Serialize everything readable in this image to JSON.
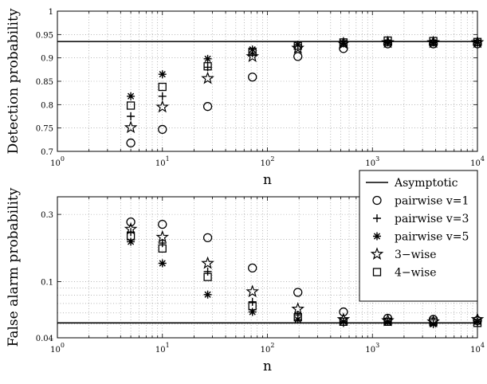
{
  "chart_data": [
    {
      "type": "scatter",
      "xscale": "log",
      "xlim": [
        1,
        10000
      ],
      "ylim": [
        0.7,
        1
      ],
      "xlabel": "n",
      "ylabel": "Detection probability",
      "grid": true,
      "x_ticks": [
        1,
        10,
        100,
        1000,
        10000
      ],
      "x_tick_labels": [
        [
          "10",
          "0"
        ],
        [
          "10",
          "1"
        ],
        [
          "10",
          "2"
        ],
        [
          "10",
          "3"
        ],
        [
          "10",
          "4"
        ]
      ],
      "y_ticks": [
        0.7,
        0.75,
        0.8,
        0.85,
        0.9,
        0.95,
        1
      ],
      "y_tick_labels": [
        "0.7",
        "0.75",
        "0.8",
        "0.85",
        "0.9",
        "0.95",
        "1"
      ],
      "asymptote": 0.935,
      "x": [
        5,
        10,
        27,
        72,
        195,
        530,
        1400,
        3800,
        10000
      ],
      "series": [
        {
          "name": "pairwise v=1",
          "marker": "circle",
          "values": [
            0.718,
            0.747,
            0.796,
            0.859,
            0.903,
            0.92,
            0.93,
            0.93,
            0.93
          ]
        },
        {
          "name": "pairwise v=3",
          "marker": "plus",
          "values": [
            0.775,
            0.818,
            0.88,
            0.91,
            0.928,
            0.931,
            0.933,
            0.933,
            0.933
          ]
        },
        {
          "name": "pairwise v=5",
          "marker": "asterisk",
          "values": [
            0.818,
            0.865,
            0.898,
            0.918,
            0.928,
            0.932,
            0.933,
            0.933,
            0.933
          ]
        },
        {
          "name": "3−wise",
          "marker": "star",
          "values": [
            0.751,
            0.795,
            0.856,
            0.903,
            0.921,
            0.931,
            0.933,
            0.933,
            0.933
          ]
        },
        {
          "name": "4−wise",
          "marker": "square",
          "values": [
            0.798,
            0.838,
            0.882,
            0.913,
            0.926,
            0.933,
            0.937,
            0.936,
            0.934
          ]
        }
      ]
    },
    {
      "type": "scatter",
      "xscale": "log",
      "yscale": "log",
      "xlim": [
        1,
        10000
      ],
      "ylim": [
        0.04,
        0.4
      ],
      "xlabel": "n",
      "ylabel": "False alarm probability",
      "grid": true,
      "legend_position": "top-right",
      "legend_extra": "Asymptotic",
      "x_ticks": [
        1,
        10,
        100,
        1000,
        10000
      ],
      "x_tick_labels": [
        [
          "10",
          "0"
        ],
        [
          "10",
          "1"
        ],
        [
          "10",
          "2"
        ],
        [
          "10",
          "3"
        ],
        [
          "10",
          "4"
        ]
      ],
      "y_ticks": [
        0.04,
        0.1,
        0.3
      ],
      "y_tick_labels": [
        "0.04",
        "0.1",
        "0.3"
      ],
      "asymptote": 0.051,
      "x": [
        5,
        10,
        27,
        72,
        195,
        530,
        1400,
        3800,
        10000
      ],
      "series": [
        {
          "name": "pairwise v=1",
          "marker": "circle",
          "values": [
            0.265,
            0.255,
            0.205,
            0.125,
            0.084,
            0.061,
            0.055,
            0.054,
            0.053
          ]
        },
        {
          "name": "pairwise v=3",
          "marker": "plus",
          "values": [
            0.225,
            0.188,
            0.118,
            0.072,
            0.058,
            0.051,
            0.052,
            0.051,
            0.052
          ]
        },
        {
          "name": "pairwise v=5",
          "marker": "asterisk",
          "values": [
            0.192,
            0.135,
            0.081,
            0.061,
            0.054,
            0.052,
            0.052,
            0.05,
            0.052
          ]
        },
        {
          "name": "3−wise",
          "marker": "star",
          "values": [
            0.236,
            0.207,
            0.135,
            0.085,
            0.064,
            0.054,
            0.053,
            0.052,
            0.054
          ]
        },
        {
          "name": "4−wise",
          "marker": "square",
          "values": [
            0.21,
            0.172,
            0.108,
            0.067,
            0.056,
            0.052,
            0.052,
            0.052,
            0.051
          ]
        }
      ]
    }
  ]
}
